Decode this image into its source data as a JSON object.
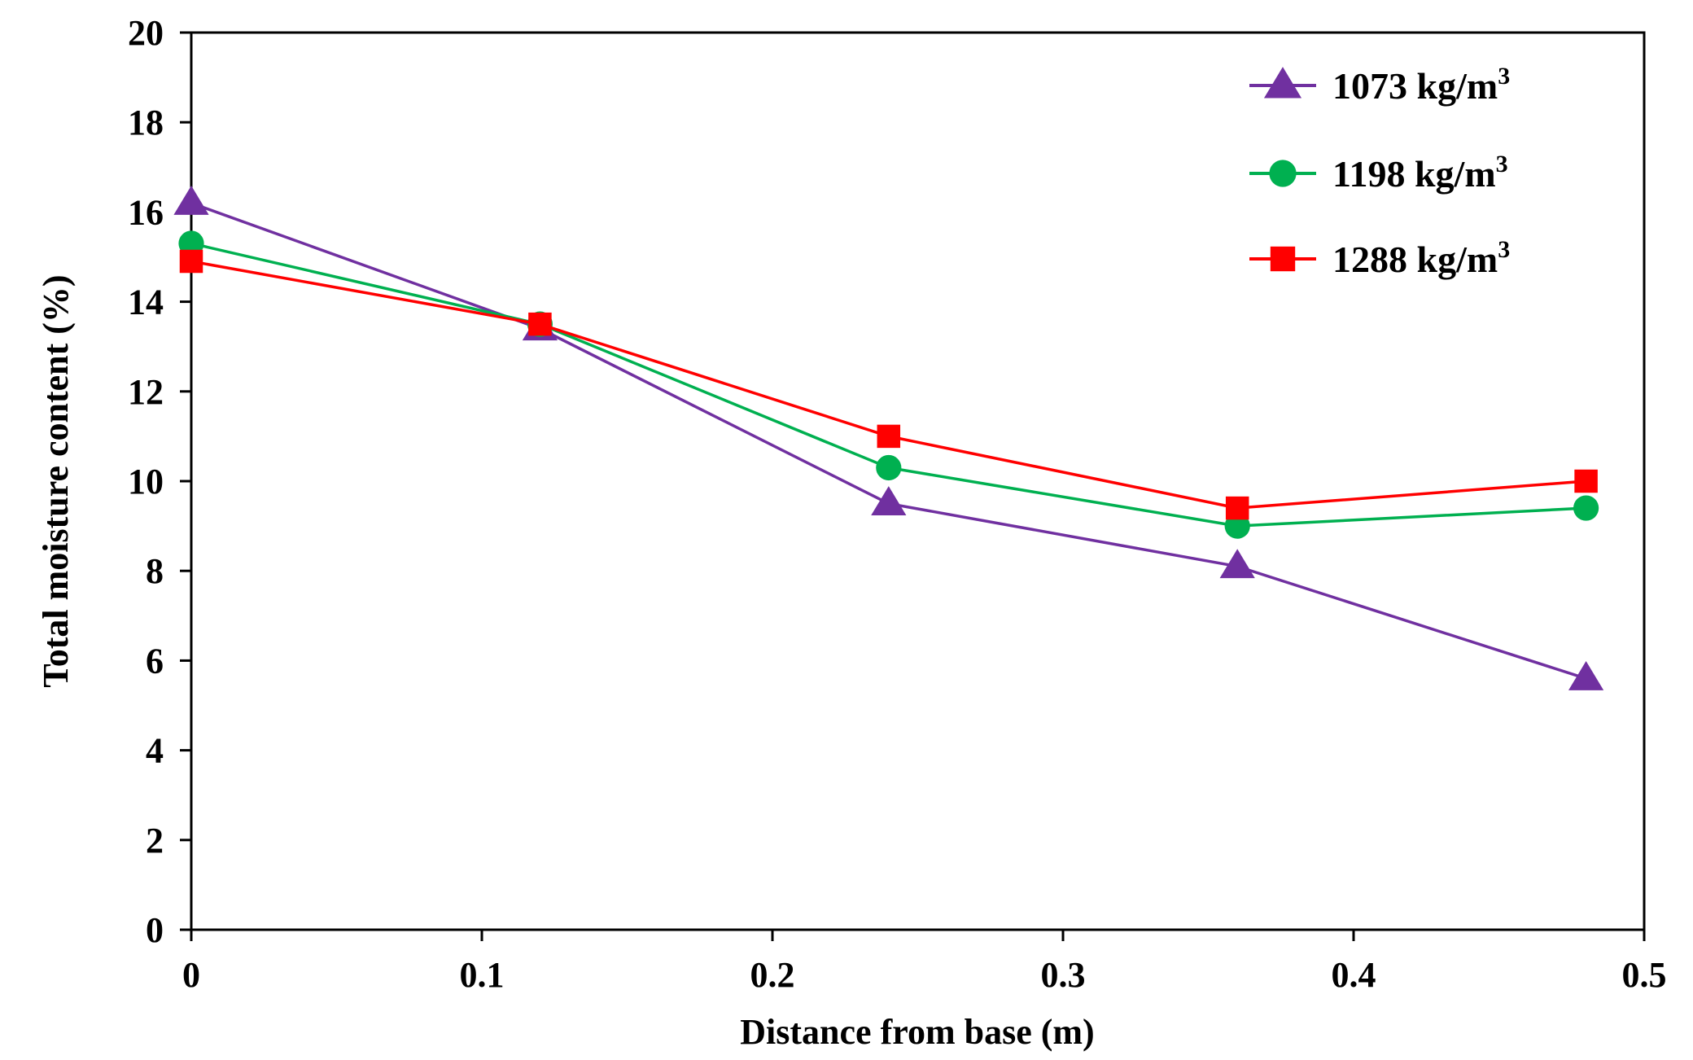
{
  "chart_data": {
    "type": "line",
    "title": "",
    "xlabel": "Distance from base (m)",
    "ylabel": "Total moisture content (%)",
    "xlim": [
      0,
      0.5
    ],
    "ylim": [
      0,
      20
    ],
    "xticks": [
      0,
      0.1,
      0.2,
      0.3,
      0.4,
      0.5
    ],
    "xtick_labels": [
      "0",
      "0.1",
      "0.2",
      "0.3",
      "0.4",
      "0.5"
    ],
    "yticks": [
      0,
      2,
      4,
      6,
      8,
      10,
      12,
      14,
      16,
      18,
      20
    ],
    "ytick_labels": [
      "0",
      "2",
      "4",
      "6",
      "8",
      "10",
      "12",
      "14",
      "16",
      "18",
      "20"
    ],
    "grid": false,
    "legend_position": "top-right",
    "x": [
      0,
      0.12,
      0.24,
      0.36,
      0.48
    ],
    "series": [
      {
        "name": "1073 kg/m",
        "superscript": "3",
        "marker": "triangle",
        "color": "#7030A0",
        "values": [
          16.2,
          13.4,
          9.5,
          8.1,
          5.6
        ]
      },
      {
        "name": "1198 kg/m",
        "superscript": "3",
        "marker": "circle",
        "color": "#00B050",
        "values": [
          15.3,
          13.5,
          10.3,
          9.0,
          9.4
        ]
      },
      {
        "name": "1288 kg/m",
        "superscript": "3",
        "marker": "square",
        "color": "#FF0000",
        "values": [
          14.9,
          13.5,
          11.0,
          9.4,
          10.0
        ]
      }
    ]
  }
}
